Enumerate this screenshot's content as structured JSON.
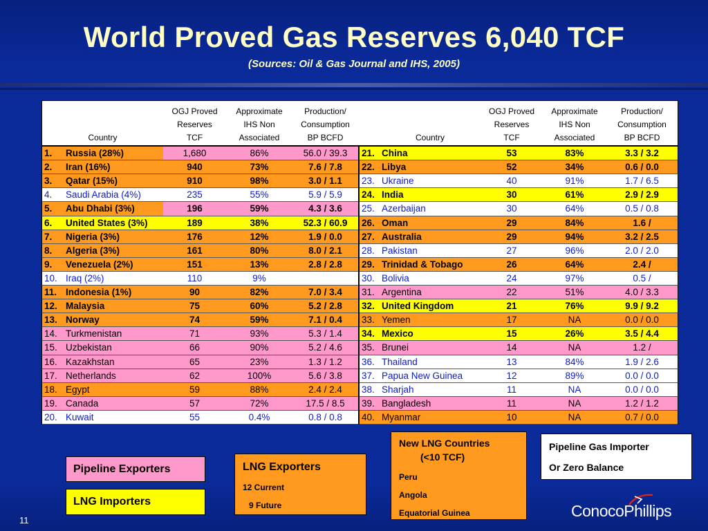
{
  "title": "World Proved Gas Reserves 6,040 TCF",
  "subtitle": "(Sources: Oil & Gas Journal and IHS, 2005)",
  "table": {
    "headers": {
      "country": "Country",
      "ogj": [
        "OGJ Proved",
        "Reserves",
        "TCF"
      ],
      "ihs": [
        "Approximate",
        "IHS Non",
        "Associated"
      ],
      "prod": [
        "Production/",
        "Consumption",
        "BP BCFD"
      ]
    },
    "rows": [
      {
        "num": "1.",
        "name": "Russia (28%)",
        "tcf": "1,680",
        "ihs": "86%",
        "prod": "56.0 / 39.3",
        "bg": "#ff9a1f",
        "bg_data": "#ff99cc",
        "style": "bold",
        "data_style": "plain"
      },
      {
        "num": "2.",
        "name": "Iran (16%)",
        "tcf": "940",
        "ihs": "73%",
        "prod": "7.6 / 7.8",
        "bg": "#ff9a1f",
        "style": "bold"
      },
      {
        "num": "3.",
        "name": "Qatar (15%)",
        "tcf": "910",
        "ihs": "98%",
        "prod": "3.0 / 1.1",
        "bg": "#ff9a1f",
        "style": "bold"
      },
      {
        "num": "4.",
        "name": "Saudi Arabia (4%)",
        "tcf": "235",
        "ihs": "55%",
        "prod": "5.9 / 5.9",
        "bg": "#ffffff",
        "style": "blue"
      },
      {
        "num": "5.",
        "name": "Abu Dhabi (3%)",
        "tcf": "196",
        "ihs": "59%",
        "prod": "4.3 / 3.6",
        "bg": "#ff9a1f",
        "bg_data": "#ff99cc",
        "style": "bold"
      },
      {
        "num": "6.",
        "name": "United States (3%)",
        "tcf": "189",
        "ihs": "38%",
        "prod": "52.3 / 60.9",
        "bg": "#ffff00",
        "style": "bold"
      },
      {
        "num": "7.",
        "name": "Nigeria (3%)",
        "tcf": "176",
        "ihs": "12%",
        "prod": "1.9 / 0.0",
        "bg": "#ff9a1f",
        "style": "bold"
      },
      {
        "num": "8.",
        "name": "Algeria (3%)",
        "tcf": "161",
        "ihs": "80%",
        "prod": "8.0 / 2.1",
        "bg": "#ff9a1f",
        "style": "bold"
      },
      {
        "num": "9.",
        "name": "Venezuela (2%)",
        "tcf": "151",
        "ihs": "13%",
        "prod": "2.8 / 2.8",
        "bg": "#ff9a1f",
        "style": "bold"
      },
      {
        "num": "10.",
        "name": "Iraq (2%)",
        "tcf": "110",
        "ihs": "9%",
        "prod": "",
        "bg": "#ffffff",
        "style": "blue"
      },
      {
        "num": "11.",
        "name": "Indonesia (1%)",
        "tcf": "90",
        "ihs": "82%",
        "prod": "7.0 / 3.4",
        "bg": "#ff9a1f",
        "style": "bold"
      },
      {
        "num": "12.",
        "name": "Malaysia",
        "tcf": "75",
        "ihs": "60%",
        "prod": "5.2 / 2.8",
        "bg": "#ff9a1f",
        "style": "bold"
      },
      {
        "num": "13.",
        "name": "Norway",
        "tcf": "74",
        "ihs": "59%",
        "prod": "7.1 / 0.4",
        "bg": "#ff9a1f",
        "style": "bold"
      },
      {
        "num": "14.",
        "name": "Turkmenistan",
        "tcf": "71",
        "ihs": "93%",
        "prod": "5.3 / 1.4",
        "bg": "#ff99cc",
        "style": "plain"
      },
      {
        "num": "15.",
        "name": "Uzbekistan",
        "tcf": "66",
        "ihs": "90%",
        "prod": "5.2 / 4.6",
        "bg": "#ff99cc",
        "style": "plain"
      },
      {
        "num": "16.",
        "name": "Kazakhstan",
        "tcf": "65",
        "ihs": "23%",
        "prod": "1.3 / 1.2",
        "bg": "#ff99cc",
        "style": "plain"
      },
      {
        "num": "17.",
        "name": "Netherlands",
        "tcf": "62",
        "ihs": "100%",
        "prod": "5.6 / 3.8",
        "bg": "#ff99cc",
        "style": "plain"
      },
      {
        "num": "18.",
        "name": "Egypt",
        "tcf": "59",
        "ihs": "88%",
        "prod": "2.4 / 2.4",
        "bg": "#ff9a1f",
        "style": "plain"
      },
      {
        "num": "19.",
        "name": "Canada",
        "tcf": "57",
        "ihs": "72%",
        "prod": "17.5 / 8.5",
        "bg": "#ff99cc",
        "style": "plain"
      },
      {
        "num": "20.",
        "name": "Kuwait",
        "tcf": "55",
        "ihs": "0.4%",
        "prod": "0.8 / 0.8",
        "bg": "#ffffff",
        "style": "blue"
      }
    ],
    "rows_right": [
      {
        "num": "21.",
        "name": "China",
        "tcf": "53",
        "ihs": "83%",
        "prod": "3.3 / 3.2",
        "bg": "#ffff00",
        "style": "bold"
      },
      {
        "num": "22.",
        "name": "Libya",
        "tcf": "52",
        "ihs": "34%",
        "prod": "0.6 / 0.0",
        "bg": "#ff9a1f",
        "style": "bold"
      },
      {
        "num": "23.",
        "name": "Ukraine",
        "tcf": "40",
        "ihs": "91%",
        "prod": "1.7 / 6.5",
        "bg": "#ffffff",
        "style": "blue"
      },
      {
        "num": "24.",
        "name": "India",
        "tcf": "30",
        "ihs": "61%",
        "prod": "2.9 / 2.9",
        "bg": "#ffff00",
        "style": "bold"
      },
      {
        "num": "25.",
        "name": "Azerbaijan",
        "tcf": "30",
        "ihs": "64%",
        "prod": "0.5 / 0.8",
        "bg": "#ffffff",
        "style": "blue"
      },
      {
        "num": "26.",
        "name": "Oman",
        "tcf": "29",
        "ihs": "84%",
        "prod": "1.6 /",
        "bg": "#ff9a1f",
        "style": "bold"
      },
      {
        "num": "27.",
        "name": "Australia",
        "tcf": "29",
        "ihs": "94%",
        "prod": "3.2 / 2.5",
        "bg": "#ff9a1f",
        "style": "bold"
      },
      {
        "num": "28.",
        "name": "Pakistan",
        "tcf": "27",
        "ihs": "96%",
        "prod": "2.0 / 2.0",
        "bg": "#ffffff",
        "style": "blue"
      },
      {
        "num": "29.",
        "name": "Trinidad & Tobago",
        "tcf": "26",
        "ihs": "64%",
        "prod": "2.4 /",
        "bg": "#ff9a1f",
        "style": "bold"
      },
      {
        "num": "30.",
        "name": "Bolivia",
        "tcf": "24",
        "ihs": "97%",
        "prod": "0.5 /",
        "bg": "#ffffff",
        "style": "blue"
      },
      {
        "num": "31.",
        "name": "Argentina",
        "tcf": "22",
        "ihs": "51%",
        "prod": "4.0 / 3.3",
        "bg": "#ff99cc",
        "style": "plain"
      },
      {
        "num": "32.",
        "name": "United Kingdom",
        "tcf": "21",
        "ihs": "76%",
        "prod": "9.9 / 9.2",
        "bg": "#ffff00",
        "style": "bold"
      },
      {
        "num": "33.",
        "name": "Yemen",
        "tcf": "17",
        "ihs": "NA",
        "prod": "0.0 / 0.0",
        "bg": "#ff9a1f",
        "style": "plain"
      },
      {
        "num": "34.",
        "name": "Mexico",
        "tcf": "15",
        "ihs": "26%",
        "prod": "3.5 / 4.4",
        "bg": "#ffff00",
        "style": "bold"
      },
      {
        "num": "35.",
        "name": "Brunei",
        "tcf": "14",
        "ihs": "NA",
        "prod": "1.2 /",
        "bg": "#ff99cc",
        "style": "plain"
      },
      {
        "num": "36.",
        "name": "Thailand",
        "tcf": "13",
        "ihs": "84%",
        "prod": "1.9 / 2.6",
        "bg": "#ffffff",
        "style": "blue"
      },
      {
        "num": "37.",
        "name": "Papua New Guinea",
        "tcf": "12",
        "ihs": "89%",
        "prod": "0.0 / 0.0",
        "bg": "#ffffff",
        "style": "blue"
      },
      {
        "num": "38.",
        "name": "Sharjah",
        "tcf": "11",
        "ihs": "NA",
        "prod": "0.0 / 0.0",
        "bg": "#ffffff",
        "style": "blue"
      },
      {
        "num": "39.",
        "name": "Bangladesh",
        "tcf": "11",
        "ihs": "NA",
        "prod": "1.2 / 1.2",
        "bg": "#ff99cc",
        "style": "plain"
      },
      {
        "num": "40.",
        "name": "Myanmar",
        "tcf": "10",
        "ihs": "NA",
        "prod": "0.7 / 0.0",
        "bg": "#ff9a1f",
        "style": "plain"
      }
    ]
  },
  "legend": {
    "pipeline_exporters": {
      "label": "Pipeline Exporters",
      "color": "#ff99cc"
    },
    "lng_importers": {
      "label": "LNG Importers",
      "color": "#ffff00"
    },
    "lng_exporters": {
      "label": "LNG Exporters",
      "line1": "12 Current",
      "line2": "9 Future",
      "color": "#ff9a1f"
    },
    "new_lng": {
      "title1": "New LNG Countries",
      "title2": "(<10 TCF)",
      "items": [
        "Peru",
        "Angola",
        "Equatorial Guinea"
      ],
      "color": "#ff9a1f"
    },
    "pipeline_importer": {
      "line1": "Pipeline Gas Importer",
      "line2": "Or Zero Balance",
      "color": "#ffffff"
    }
  },
  "page_number": "11",
  "logo": {
    "text": "ConocoPhillips",
    "icon": "conocophillips-logo-icon"
  }
}
